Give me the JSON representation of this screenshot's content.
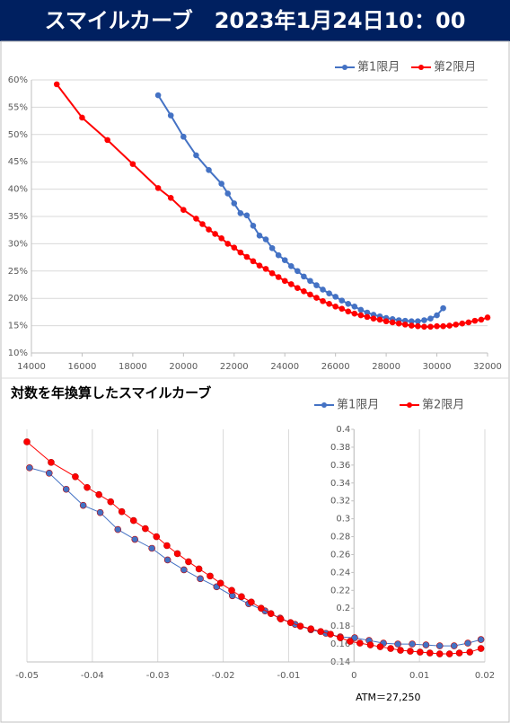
{
  "title": "スマイルカーブ　2023年1月24日10：00",
  "chart_data": [
    {
      "type": "line",
      "legend": "top-right",
      "grid": "y",
      "xlim": [
        14000,
        32000
      ],
      "xticks": [
        14000,
        16000,
        18000,
        20000,
        22000,
        24000,
        26000,
        28000,
        30000,
        32000
      ],
      "ylim": [
        10,
        60
      ],
      "yticks": [
        {
          "value": 10,
          "label": "10%"
        },
        {
          "value": 15,
          "label": "15%"
        },
        {
          "value": 20,
          "label": "20%"
        },
        {
          "value": 25,
          "label": "25%"
        },
        {
          "value": 30,
          "label": "30%"
        },
        {
          "value": 35,
          "label": "35%"
        },
        {
          "value": 40,
          "label": "40%"
        },
        {
          "value": 45,
          "label": "45%"
        },
        {
          "value": 50,
          "label": "50%"
        },
        {
          "value": 55,
          "label": "55%"
        },
        {
          "value": 60,
          "label": "60%"
        }
      ],
      "series": [
        {
          "name": "第1限月",
          "color": "#4472c4",
          "x": [
            19000,
            19500,
            20000,
            20500,
            21000,
            21500,
            21750,
            22000,
            22250,
            22500,
            22750,
            23000,
            23250,
            23500,
            23750,
            24000,
            24250,
            24500,
            24750,
            25000,
            25250,
            25500,
            25750,
            26000,
            26250,
            26500,
            26750,
            27000,
            27250,
            27500,
            27750,
            28000,
            28250,
            28500,
            28750,
            29000,
            29250,
            29500,
            29750,
            30000,
            30250
          ],
          "values": [
            57.2,
            53.5,
            49.6,
            46.2,
            43.5,
            41.0,
            39.2,
            37.4,
            35.6,
            35.2,
            33.3,
            31.5,
            30.8,
            29.2,
            27.9,
            27.0,
            25.9,
            25.0,
            24.0,
            23.2,
            22.4,
            21.6,
            20.9,
            20.3,
            19.6,
            19.0,
            18.5,
            17.9,
            17.4,
            17.0,
            16.7,
            16.4,
            16.2,
            16.0,
            15.9,
            15.8,
            15.8,
            16.0,
            16.3,
            16.9,
            18.2
          ]
        },
        {
          "name": "第2限月",
          "color": "#ff0000",
          "x": [
            15000,
            16000,
            17000,
            18000,
            19000,
            19500,
            20000,
            20500,
            20750,
            21000,
            21250,
            21500,
            21750,
            22000,
            22250,
            22500,
            22750,
            23000,
            23250,
            23500,
            23750,
            24000,
            24250,
            24500,
            24750,
            25000,
            25250,
            25500,
            25750,
            26000,
            26250,
            26500,
            26750,
            27000,
            27250,
            27500,
            27750,
            28000,
            28250,
            28500,
            28750,
            29000,
            29250,
            29500,
            29750,
            30000,
            30250,
            30500,
            30750,
            31000,
            31250,
            31500,
            31750,
            32000
          ],
          "values": [
            59.2,
            53.1,
            49.0,
            44.6,
            40.2,
            38.4,
            36.2,
            34.6,
            33.6,
            32.6,
            31.8,
            31.0,
            30.0,
            29.3,
            28.4,
            27.6,
            26.8,
            26.0,
            25.4,
            24.6,
            23.9,
            23.2,
            22.6,
            21.9,
            21.3,
            20.7,
            20.1,
            19.5,
            19.0,
            18.5,
            18.1,
            17.6,
            17.2,
            16.9,
            16.6,
            16.3,
            16.1,
            15.8,
            15.6,
            15.4,
            15.2,
            15.0,
            14.9,
            14.8,
            14.8,
            14.9,
            14.9,
            15.0,
            15.2,
            15.4,
            15.6,
            15.9,
            16.1,
            16.5
          ]
        }
      ]
    },
    {
      "type": "line",
      "title": "対数を年換算したスマイルカーブ",
      "legend": "top-right",
      "grid": "x",
      "annotation": "ATM＝27,250",
      "y_axis_at_x": 0,
      "xlim": [
        -0.05,
        0.02
      ],
      "xticks": [
        -0.05,
        -0.04,
        -0.03,
        -0.02,
        -0.01,
        0,
        0.01,
        0.02
      ],
      "ylim": [
        0.14,
        0.4
      ],
      "yticks": [
        0.14,
        0.16,
        0.18,
        0.2,
        0.22,
        0.24,
        0.26,
        0.28,
        0.3,
        0.32,
        0.34,
        0.36,
        0.38,
        0.4
      ],
      "series": [
        {
          "name": "第1限月",
          "color": "#4472c4",
          "x": [
            -0.0496,
            -0.0466,
            -0.044,
            -0.0414,
            -0.0388,
            -0.0361,
            -0.0335,
            -0.0309,
            -0.0285,
            -0.026,
            -0.0235,
            -0.021,
            -0.0186,
            -0.0161,
            -0.0136,
            -0.0113,
            -0.009,
            -0.0066,
            -0.0043,
            -0.0021,
            0.0001,
            0.0023,
            0.0045,
            0.0067,
            0.0089,
            0.011,
            0.0131,
            0.0153,
            0.0174,
            0.0194
          ],
          "values": [
            0.357,
            0.351,
            0.333,
            0.315,
            0.307,
            0.288,
            0.277,
            0.267,
            0.254,
            0.243,
            0.233,
            0.224,
            0.214,
            0.205,
            0.197,
            0.189,
            0.182,
            0.176,
            0.172,
            0.168,
            0.167,
            0.164,
            0.161,
            0.16,
            0.16,
            0.159,
            0.158,
            0.158,
            0.161,
            0.165
          ]
        },
        {
          "name": "第2限月",
          "color": "#ff0000",
          "x": [
            -0.05,
            -0.0463,
            -0.0426,
            -0.0408,
            -0.039,
            -0.0372,
            -0.0355,
            -0.0337,
            -0.0319,
            -0.0302,
            -0.0286,
            -0.027,
            -0.0253,
            -0.0237,
            -0.022,
            -0.0204,
            -0.0187,
            -0.0172,
            -0.0157,
            -0.0142,
            -0.0127,
            -0.0112,
            -0.0097,
            -0.0082,
            -0.0066,
            -0.0051,
            -0.0036,
            -0.0021,
            -0.0006,
            0.0009,
            0.0025,
            0.004,
            0.0056,
            0.0071,
            0.0086,
            0.0101,
            0.0116,
            0.0131,
            0.0146,
            0.0161,
            0.0177,
            0.0194
          ],
          "values": [
            0.386,
            0.363,
            0.347,
            0.335,
            0.327,
            0.319,
            0.308,
            0.298,
            0.289,
            0.28,
            0.27,
            0.261,
            0.252,
            0.244,
            0.236,
            0.228,
            0.22,
            0.213,
            0.207,
            0.2,
            0.194,
            0.188,
            0.184,
            0.18,
            0.177,
            0.174,
            0.171,
            0.167,
            0.163,
            0.161,
            0.159,
            0.157,
            0.155,
            0.153,
            0.152,
            0.151,
            0.15,
            0.149,
            0.149,
            0.15,
            0.151,
            0.155
          ]
        }
      ]
    }
  ]
}
